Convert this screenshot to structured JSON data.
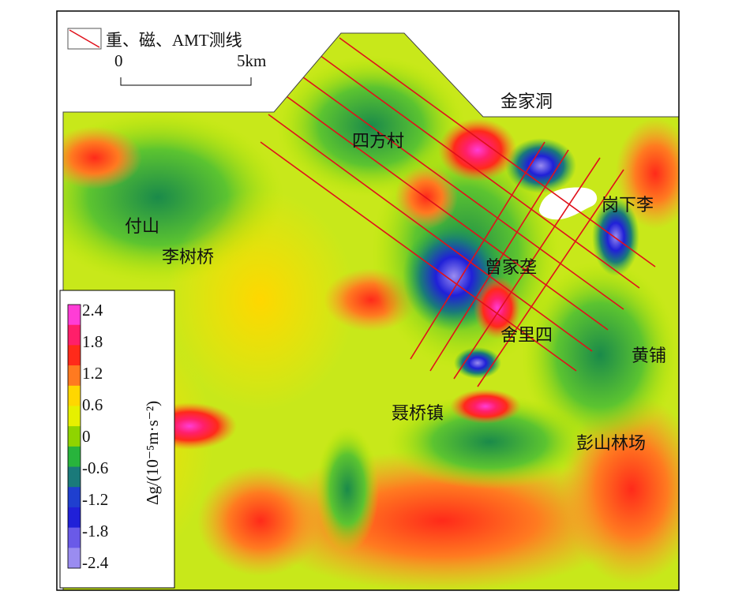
{
  "legend": {
    "survey_line_label": "重、磁、AMT测线",
    "scale_start": "0",
    "scale_end": "5km"
  },
  "colorbar": {
    "axis_label": "Δg/(10⁻⁵m·s⁻²)",
    "ticks": [
      "2.4",
      "1.8",
      "1.2",
      "0.6",
      "0",
      "-0.6",
      "-1.2",
      "-1.8",
      "-2.4"
    ],
    "colors": [
      "#ff3dd6",
      "#ff1f6a",
      "#ff2a1a",
      "#ff7a20",
      "#ffd700",
      "#e6f000",
      "#8fd400",
      "#28b43c",
      "#1a7a7a",
      "#1f3fcf",
      "#2020d8",
      "#6a5ae8",
      "#9a8cf0"
    ]
  },
  "places": [
    {
      "id": "jinjiadong",
      "label": "金家洞"
    },
    {
      "id": "sifangcun",
      "label": "四方村"
    },
    {
      "id": "gangxiali",
      "label": "岗下李"
    },
    {
      "id": "fushan",
      "label": "付山"
    },
    {
      "id": "lishuqiao",
      "label": "李树桥"
    },
    {
      "id": "zengjiaao",
      "label": "曾家垄"
    },
    {
      "id": "shelisi",
      "label": "舍里四"
    },
    {
      "id": "huangpu",
      "label": "黄铺"
    },
    {
      "id": "nieqiaozhen",
      "label": "聂桥镇"
    },
    {
      "id": "pengshanlinchang",
      "label": "彭山林场"
    }
  ],
  "colors": {
    "survey_line": "#e0101a",
    "frame": "#000000"
  }
}
